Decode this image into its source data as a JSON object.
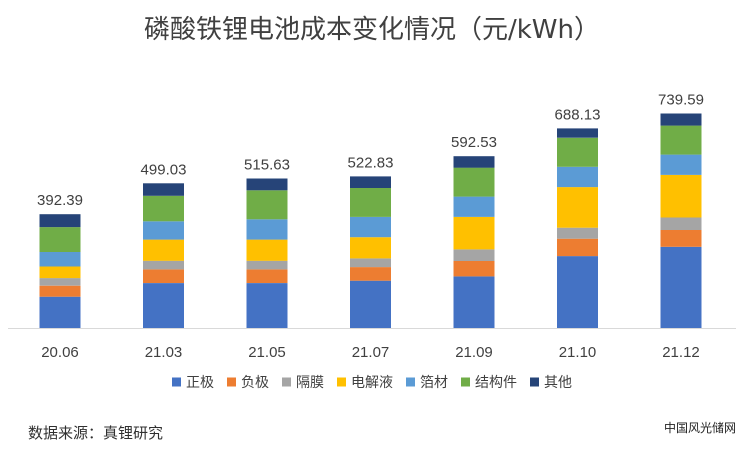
{
  "chart_data": {
    "type": "bar",
    "stacked": true,
    "title": "磷酸铁锂电池成本变化情况（元/kWh）",
    "categories": [
      "20.06",
      "21.03",
      "21.05",
      "21.07",
      "21.09",
      "21.10",
      "21.12"
    ],
    "totals": [
      "392.39",
      "499.03",
      "515.63",
      "522.83",
      "592.53",
      "688.13",
      "739.59"
    ],
    "series": [
      {
        "name": "正极",
        "color": "#4472C4",
        "values": [
          108,
          155,
          155,
          163,
          178,
          248,
          280
        ]
      },
      {
        "name": "负极",
        "color": "#ED7D31",
        "values": [
          38,
          47,
          47,
          47,
          53,
          60,
          58
        ]
      },
      {
        "name": "隔膜",
        "color": "#A5A5A5",
        "values": [
          26,
          30,
          30,
          30,
          40,
          38,
          43
        ]
      },
      {
        "name": "电解液",
        "color": "#FFC000",
        "values": [
          40,
          73,
          73,
          73,
          112,
          140,
          147
        ]
      },
      {
        "name": "箔材",
        "color": "#5B9BD5",
        "values": [
          50,
          63,
          70,
          70,
          70,
          70,
          70
        ]
      },
      {
        "name": "结构件",
        "color": "#70AD47",
        "values": [
          86,
          88,
          100,
          100,
          100,
          100,
          100
        ]
      },
      {
        "name": "其他",
        "color": "#264478",
        "values": [
          44.39,
          43.03,
          40.63,
          39.83,
          39.53,
          32.13,
          41.59
        ]
      }
    ],
    "legend_position": "bottom",
    "grid": false,
    "ylim": [
      0,
      850
    ]
  },
  "source": "数据来源：真锂研究",
  "watermark": "中国风光储网"
}
